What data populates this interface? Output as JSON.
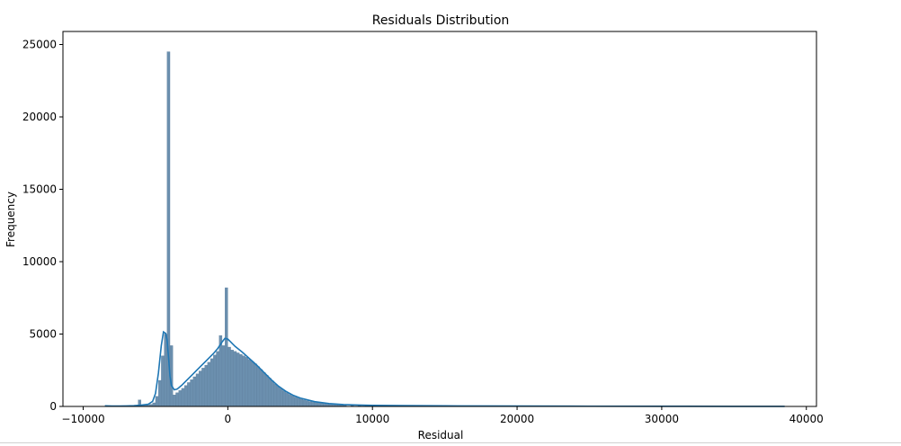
{
  "chart_data": {
    "type": "bar",
    "title": "Residuals Distribution",
    "xlabel": "Residual",
    "ylabel": "Frequency",
    "xlim": [
      -10000,
      40000
    ],
    "ylim": [
      0,
      25000
    ],
    "xticks": [
      -10000,
      0,
      10000,
      20000,
      30000,
      40000
    ],
    "xtick_labels": [
      "−10000",
      "0",
      "10000",
      "20000",
      "30000",
      "40000"
    ],
    "yticks": [
      0,
      5000,
      10000,
      15000,
      20000,
      25000
    ],
    "ytick_labels": [
      "0",
      "5000",
      "10000",
      "15000",
      "20000",
      "25000"
    ],
    "bar_color": "#6b8fae",
    "bar_edge_color": "#5a7d9c",
    "kde_color": "#1f77b4",
    "grid": false,
    "legend": "none",
    "histogram": {
      "bin_width": 200,
      "bins": [
        {
          "x": -8400,
          "y": 30
        },
        {
          "x": -8000,
          "y": 20
        },
        {
          "x": -7600,
          "y": 25
        },
        {
          "x": -7200,
          "y": 30
        },
        {
          "x": -6800,
          "y": 35
        },
        {
          "x": -6400,
          "y": 60
        },
        {
          "x": -6200,
          "y": 450
        },
        {
          "x": -6000,
          "y": 90
        },
        {
          "x": -5800,
          "y": 80
        },
        {
          "x": -5600,
          "y": 100
        },
        {
          "x": -5400,
          "y": 150
        },
        {
          "x": -5200,
          "y": 250
        },
        {
          "x": -5000,
          "y": 700
        },
        {
          "x": -4800,
          "y": 1800
        },
        {
          "x": -4600,
          "y": 3500
        },
        {
          "x": -4400,
          "y": 5000
        },
        {
          "x": -4200,
          "y": 24500
        },
        {
          "x": -4000,
          "y": 4200
        },
        {
          "x": -3800,
          "y": 800
        },
        {
          "x": -3600,
          "y": 950
        },
        {
          "x": -3400,
          "y": 1100
        },
        {
          "x": -3200,
          "y": 1250
        },
        {
          "x": -3000,
          "y": 1450
        },
        {
          "x": -2800,
          "y": 1650
        },
        {
          "x": -2600,
          "y": 1850
        },
        {
          "x": -2400,
          "y": 2050
        },
        {
          "x": -2200,
          "y": 2250
        },
        {
          "x": -2000,
          "y": 2450
        },
        {
          "x": -1800,
          "y": 2650
        },
        {
          "x": -1600,
          "y": 2850
        },
        {
          "x": -1400,
          "y": 3050
        },
        {
          "x": -1200,
          "y": 3300
        },
        {
          "x": -1000,
          "y": 3550
        },
        {
          "x": -800,
          "y": 3800
        },
        {
          "x": -600,
          "y": 4900
        },
        {
          "x": -400,
          "y": 4200
        },
        {
          "x": -200,
          "y": 8200
        },
        {
          "x": 0,
          "y": 4100
        },
        {
          "x": 200,
          "y": 3900
        },
        {
          "x": 400,
          "y": 3800
        },
        {
          "x": 600,
          "y": 3700
        },
        {
          "x": 800,
          "y": 3600
        },
        {
          "x": 1000,
          "y": 3500
        },
        {
          "x": 1200,
          "y": 3400
        },
        {
          "x": 1400,
          "y": 3250
        },
        {
          "x": 1600,
          "y": 3100
        },
        {
          "x": 1800,
          "y": 2950
        },
        {
          "x": 2000,
          "y": 2750
        },
        {
          "x": 2200,
          "y": 2550
        },
        {
          "x": 2400,
          "y": 2350
        },
        {
          "x": 2600,
          "y": 2150
        },
        {
          "x": 2800,
          "y": 1950
        },
        {
          "x": 3000,
          "y": 1750
        },
        {
          "x": 3200,
          "y": 1550
        },
        {
          "x": 3400,
          "y": 1380
        },
        {
          "x": 3600,
          "y": 1220
        },
        {
          "x": 3800,
          "y": 1080
        },
        {
          "x": 4000,
          "y": 950
        },
        {
          "x": 4200,
          "y": 840
        },
        {
          "x": 4400,
          "y": 740
        },
        {
          "x": 4600,
          "y": 650
        },
        {
          "x": 4800,
          "y": 570
        },
        {
          "x": 5000,
          "y": 500
        },
        {
          "x": 5200,
          "y": 440
        },
        {
          "x": 5400,
          "y": 390
        },
        {
          "x": 5600,
          "y": 340
        },
        {
          "x": 5800,
          "y": 300
        },
        {
          "x": 6000,
          "y": 265
        },
        {
          "x": 6200,
          "y": 235
        },
        {
          "x": 6400,
          "y": 210
        },
        {
          "x": 6600,
          "y": 185
        },
        {
          "x": 6800,
          "y": 165
        },
        {
          "x": 7000,
          "y": 148
        },
        {
          "x": 7200,
          "y": 132
        },
        {
          "x": 7400,
          "y": 118
        },
        {
          "x": 7600,
          "y": 106
        },
        {
          "x": 7800,
          "y": 96
        },
        {
          "x": 8000,
          "y": 88
        },
        {
          "x": 8500,
          "y": 75
        },
        {
          "x": 9000,
          "y": 65
        },
        {
          "x": 9500,
          "y": 58
        },
        {
          "x": 10000,
          "y": 52
        },
        {
          "x": 11000,
          "y": 45
        },
        {
          "x": 12000,
          "y": 40
        },
        {
          "x": 13000,
          "y": 35
        },
        {
          "x": 14000,
          "y": 30
        },
        {
          "x": 15000,
          "y": 27
        },
        {
          "x": 16000,
          "y": 24
        },
        {
          "x": 17000,
          "y": 21
        },
        {
          "x": 18000,
          "y": 19
        },
        {
          "x": 19000,
          "y": 17
        },
        {
          "x": 20000,
          "y": 15
        },
        {
          "x": 22000,
          "y": 12
        },
        {
          "x": 24000,
          "y": 10
        },
        {
          "x": 26000,
          "y": 8
        },
        {
          "x": 28000,
          "y": 7
        },
        {
          "x": 30000,
          "y": 6
        },
        {
          "x": 32000,
          "y": 5
        },
        {
          "x": 34000,
          "y": 4
        },
        {
          "x": 36000,
          "y": 4
        },
        {
          "x": 38000,
          "y": 3
        }
      ]
    },
    "kde": [
      [
        -8500,
        40
      ],
      [
        -8000,
        30
      ],
      [
        -7500,
        30
      ],
      [
        -7000,
        35
      ],
      [
        -6500,
        50
      ],
      [
        -6000,
        90
      ],
      [
        -5500,
        150
      ],
      [
        -5200,
        350
      ],
      [
        -5000,
        900
      ],
      [
        -4800,
        2300
      ],
      [
        -4600,
        4200
      ],
      [
        -4450,
        5150
      ],
      [
        -4300,
        5050
      ],
      [
        -4200,
        4600
      ],
      [
        -4100,
        3400
      ],
      [
        -4000,
        2100
      ],
      [
        -3900,
        1450
      ],
      [
        -3700,
        1150
      ],
      [
        -3500,
        1200
      ],
      [
        -3200,
        1450
      ],
      [
        -3000,
        1650
      ],
      [
        -2500,
        2150
      ],
      [
        -2000,
        2650
      ],
      [
        -1500,
        3150
      ],
      [
        -1000,
        3650
      ],
      [
        -700,
        4000
      ],
      [
        -400,
        4450
      ],
      [
        -200,
        4700
      ],
      [
        0,
        4650
      ],
      [
        200,
        4450
      ],
      [
        500,
        4150
      ],
      [
        1000,
        3750
      ],
      [
        1500,
        3300
      ],
      [
        2000,
        2850
      ],
      [
        2500,
        2350
      ],
      [
        3000,
        1850
      ],
      [
        3500,
        1400
      ],
      [
        4000,
        1050
      ],
      [
        4500,
        780
      ],
      [
        5000,
        580
      ],
      [
        6000,
        330
      ],
      [
        7000,
        200
      ],
      [
        8000,
        130
      ],
      [
        9000,
        95
      ],
      [
        10000,
        75
      ],
      [
        12000,
        55
      ],
      [
        15000,
        40
      ],
      [
        20000,
        25
      ],
      [
        25000,
        15
      ],
      [
        30000,
        10
      ],
      [
        35000,
        7
      ],
      [
        38500,
        5
      ]
    ]
  }
}
